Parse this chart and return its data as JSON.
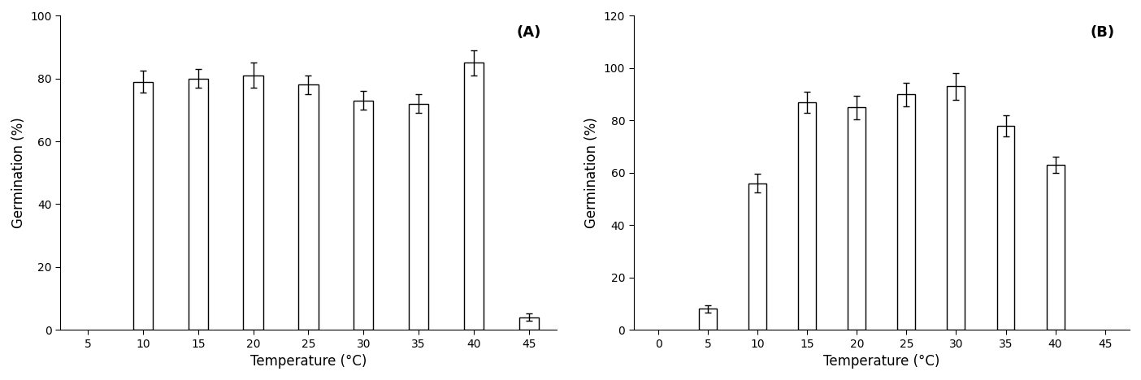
{
  "panel_A": {
    "x": [
      5,
      10,
      15,
      20,
      25,
      30,
      35,
      40,
      45
    ],
    "values": [
      0,
      79,
      80,
      81,
      78,
      73,
      72,
      85,
      4
    ],
    "errors": [
      0,
      3.5,
      3.0,
      4.0,
      3.0,
      3.0,
      3.0,
      4.0,
      1.2
    ],
    "xlim": [
      2.5,
      47.5
    ],
    "ylim": [
      0,
      100
    ],
    "yticks": [
      0,
      20,
      40,
      60,
      80,
      100
    ],
    "xticks": [
      5,
      10,
      15,
      20,
      25,
      30,
      35,
      40,
      45
    ],
    "ylabel": "Germination (%)",
    "xlabel": "Temperature (°C)",
    "label": "(A)"
  },
  "panel_B": {
    "x": [
      0,
      5,
      10,
      15,
      20,
      25,
      30,
      35,
      40,
      45
    ],
    "values": [
      0,
      8,
      56,
      87,
      85,
      90,
      93,
      78,
      63,
      0
    ],
    "errors": [
      0,
      1.5,
      3.5,
      4.0,
      4.5,
      4.5,
      5.0,
      4.0,
      3.0,
      0
    ],
    "xlim": [
      -2.5,
      47.5
    ],
    "ylim": [
      0,
      120
    ],
    "yticks": [
      0,
      20,
      40,
      60,
      80,
      100,
      120
    ],
    "xticks": [
      0,
      5,
      10,
      15,
      20,
      25,
      30,
      35,
      40,
      45
    ],
    "ylabel": "Germination (%)",
    "xlabel": "Temperature (°C)",
    "label": "(B)"
  },
  "bar_width": 1.8,
  "bar_color": "white",
  "bar_edgecolor": "black",
  "bar_linewidth": 1.0,
  "error_capsize": 3,
  "error_color": "black",
  "error_linewidth": 1.0,
  "font_size_label": 12,
  "font_size_tick": 10,
  "font_size_panel": 13,
  "background_color": "white"
}
